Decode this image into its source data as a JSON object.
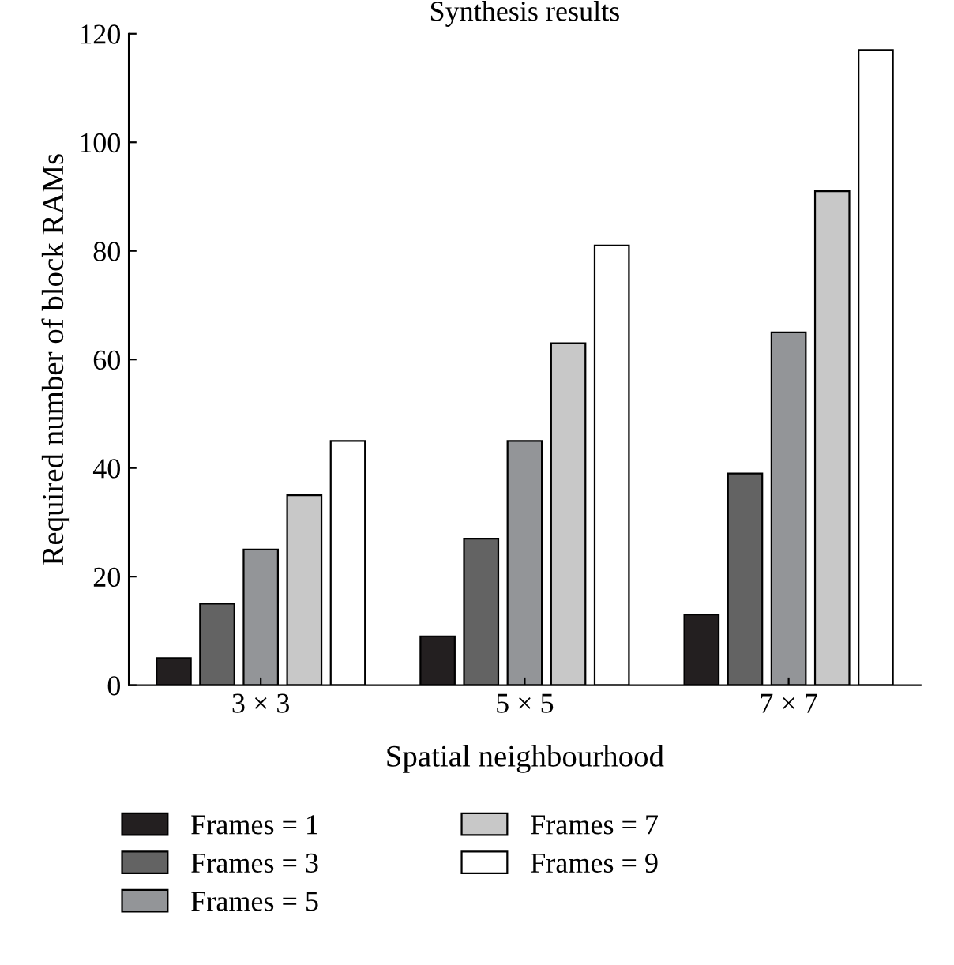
{
  "chart_data": {
    "type": "bar",
    "title": "Synthesis results",
    "xlabel": "Spatial neighbourhood",
    "ylabel": "Required number of block RAMs",
    "categories": [
      "3 × 3",
      "5 × 5",
      "7 × 7"
    ],
    "series": [
      {
        "name": "Frames = 1",
        "color": "#231f20",
        "values": [
          5,
          9,
          13
        ]
      },
      {
        "name": "Frames = 3",
        "color": "#636363",
        "values": [
          15,
          27,
          39
        ]
      },
      {
        "name": "Frames = 5",
        "color": "#939598",
        "values": [
          25,
          45,
          65
        ]
      },
      {
        "name": "Frames = 7",
        "color": "#c8c8c8",
        "values": [
          35,
          63,
          91
        ]
      },
      {
        "name": "Frames = 9",
        "color": "#ffffff",
        "values": [
          45,
          81,
          117
        ]
      }
    ],
    "ylim": [
      0,
      120
    ],
    "yticks": [
      0,
      20,
      40,
      60,
      80,
      100,
      120
    ],
    "grid": false,
    "legend": "bottom"
  }
}
